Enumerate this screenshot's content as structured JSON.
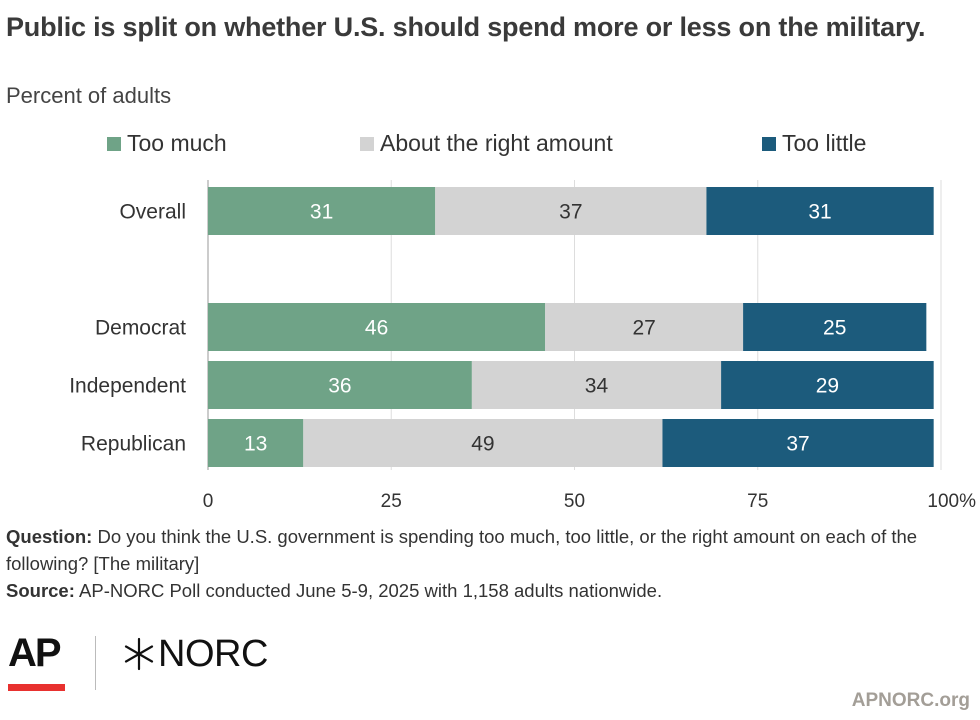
{
  "header": {
    "title": "Public is split on whether U.S. should spend more or less on the military.",
    "subtitle": "Percent of adults"
  },
  "chart_data": {
    "type": "bar",
    "orientation": "horizontal",
    "stacked": true,
    "categories": [
      "Overall",
      "Democrat",
      "Independent",
      "Republican"
    ],
    "series": [
      {
        "name": "Too much",
        "color": "#6fa387",
        "values": [
          31,
          46,
          36,
          13
        ]
      },
      {
        "name": "About the right amount",
        "color": "#d3d3d3",
        "values": [
          37,
          27,
          34,
          49
        ]
      },
      {
        "name": "Too little",
        "color": "#1c5b7c",
        "values": [
          31,
          25,
          29,
          37
        ]
      }
    ],
    "xlim": [
      0,
      100
    ],
    "x_ticks": [
      "0",
      "25",
      "50",
      "75",
      "100%"
    ],
    "x_tick_values": [
      0,
      25,
      50,
      75,
      100
    ],
    "grid": true,
    "legend_placement": "top"
  },
  "notes": {
    "question_label": "Question:",
    "question_text": " Do you think the U.S. government is spending too much, too little, or the right amount on each of the following? [The military]",
    "source_label": "Source:",
    "source_text": " AP-NORC Poll conducted June 5-9, 2025 with 1,158 adults nationwide."
  },
  "branding": {
    "ap_logo_text": "AP",
    "norc_logo_text": "NORC",
    "site": "APNORC.org"
  }
}
